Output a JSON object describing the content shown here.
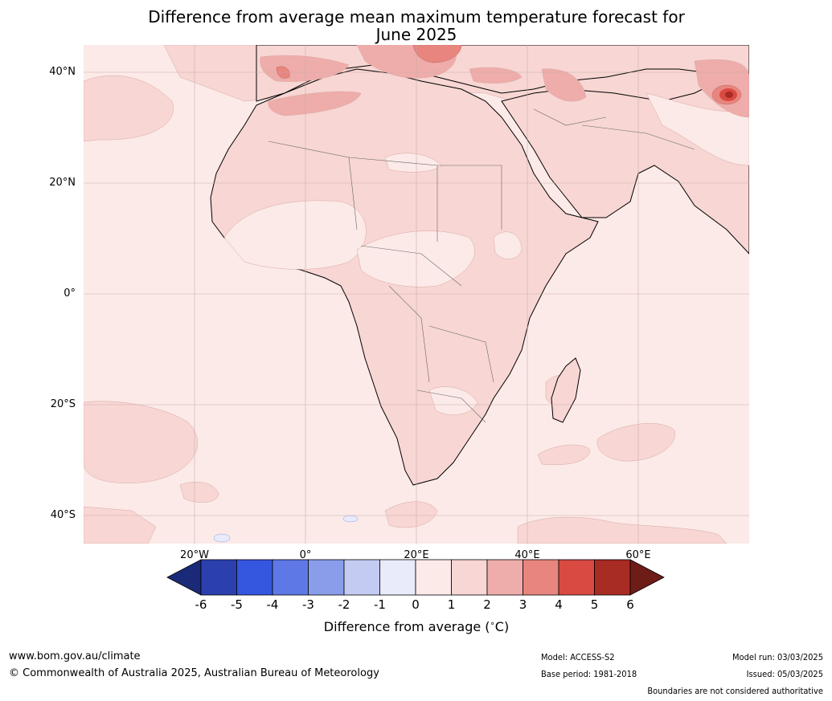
{
  "title": {
    "line1": "Difference from average mean maximum temperature forecast for",
    "line2": "June 2025"
  },
  "map": {
    "lat_labels": [
      "40°N",
      "20°N",
      "0°",
      "20°S",
      "40°S"
    ],
    "lon_labels": [
      "20°W",
      "0°",
      "20°E",
      "40°E",
      "60°E"
    ],
    "ocean_color": "#fbeae8",
    "land_color": "#f7d6d3"
  },
  "colorbar": {
    "ticks": [
      "-6",
      "-5",
      "-4",
      "-3",
      "-2",
      "-1",
      "0",
      "1",
      "2",
      "3",
      "4",
      "5",
      "6"
    ],
    "colors": [
      "#1b2a78",
      "#2b3fad",
      "#3556de",
      "#5e79e6",
      "#8a9dea",
      "#c3cbf2",
      "#e9ebfa",
      "#fbeae8",
      "#f7d6d3",
      "#eeadaa",
      "#e8857e",
      "#d94a42",
      "#a82b24",
      "#6e1c17"
    ],
    "label": "Difference from average ($^\\circ$C)"
  },
  "footer": {
    "site": "www.bom.gov.au/climate",
    "copyright": "© Commonwealth of Australia 2025, Australian Bureau of Meteorology",
    "model": "Model: ACCESS-S2",
    "base_period": "Base period: 1981-2018",
    "model_run": "Model run: 03/03/2025",
    "issued": "Issued: 05/03/2025",
    "disclaimer": "Boundaries are not considered authoritative"
  }
}
